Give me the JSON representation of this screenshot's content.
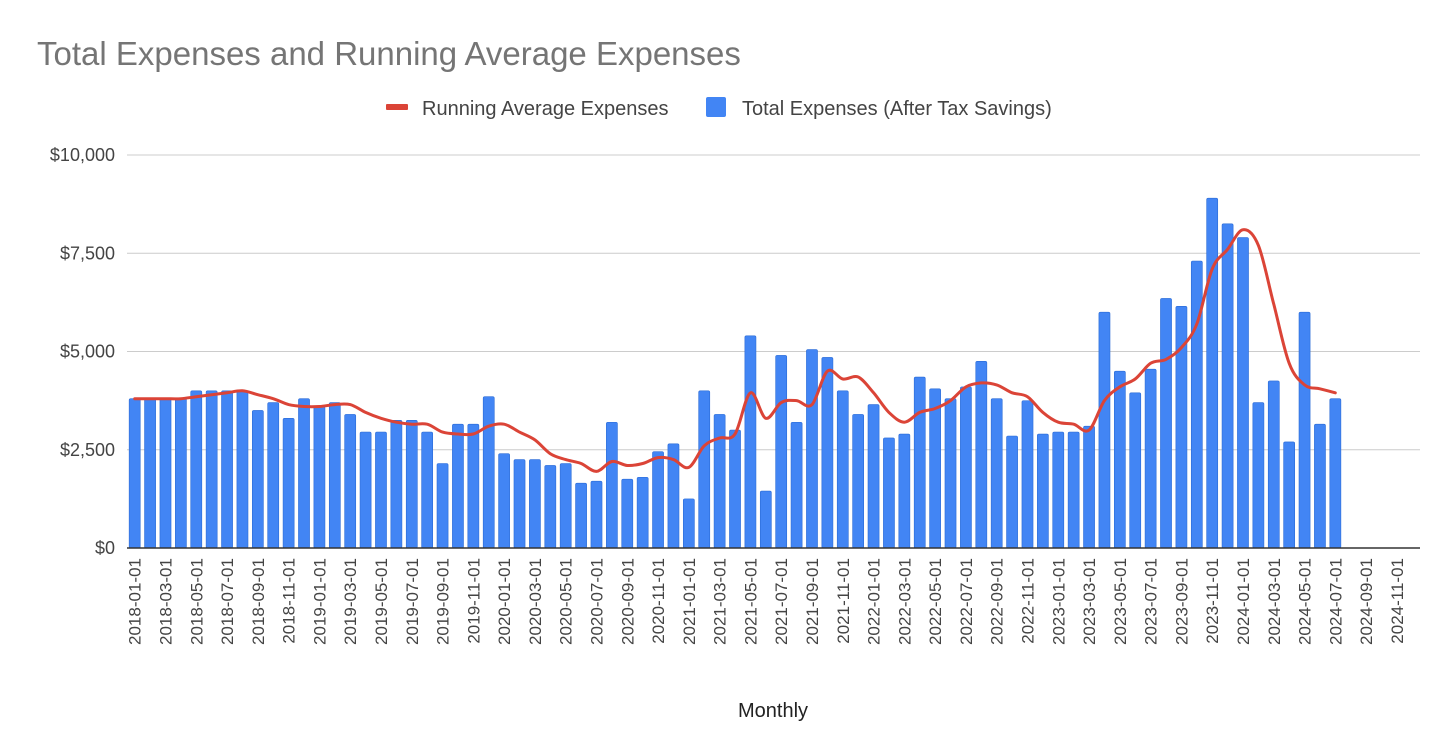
{
  "chart_data": {
    "type": "bar",
    "title": "Total Expenses and Running Average Expenses",
    "xlabel": "Monthly",
    "ylabel": "",
    "ylim": [
      0,
      10000
    ],
    "y_ticks": [
      "$0",
      "$2,500",
      "$5,000",
      "$7,500",
      "$10,000"
    ],
    "grid": true,
    "legend_position": "top",
    "categories": [
      "2018-01-01",
      "2018-02-01",
      "2018-03-01",
      "2018-04-01",
      "2018-05-01",
      "2018-06-01",
      "2018-07-01",
      "2018-08-01",
      "2018-09-01",
      "2018-10-01",
      "2018-11-01",
      "2018-12-01",
      "2019-01-01",
      "2019-02-01",
      "2019-03-01",
      "2019-04-01",
      "2019-05-01",
      "2019-06-01",
      "2019-07-01",
      "2019-08-01",
      "2019-09-01",
      "2019-10-01",
      "2019-11-01",
      "2019-12-01",
      "2020-01-01",
      "2020-02-01",
      "2020-03-01",
      "2020-04-01",
      "2020-05-01",
      "2020-06-01",
      "2020-07-01",
      "2020-08-01",
      "2020-09-01",
      "2020-10-01",
      "2020-11-01",
      "2020-12-01",
      "2021-01-01",
      "2021-02-01",
      "2021-03-01",
      "2021-04-01",
      "2021-05-01",
      "2021-06-01",
      "2021-07-01",
      "2021-08-01",
      "2021-09-01",
      "2021-10-01",
      "2021-11-01",
      "2021-12-01",
      "2022-01-01",
      "2022-02-01",
      "2022-03-01",
      "2022-04-01",
      "2022-05-01",
      "2022-06-01",
      "2022-07-01",
      "2022-08-01",
      "2022-09-01",
      "2022-10-01",
      "2022-11-01",
      "2022-12-01",
      "2023-01-01",
      "2023-02-01",
      "2023-03-01",
      "2023-04-01",
      "2023-05-01",
      "2023-06-01",
      "2023-07-01",
      "2023-08-01",
      "2023-09-01",
      "2023-10-01",
      "2023-11-01",
      "2023-12-01",
      "2024-01-01",
      "2024-02-01",
      "2024-03-01",
      "2024-04-01",
      "2024-05-01",
      "2024-06-01",
      "2024-07-01",
      "2024-08-01",
      "2024-09-01",
      "2024-10-01",
      "2024-11-01",
      "2024-12-01"
    ],
    "x_tick_labels": [
      "2018-01-01",
      "2018-03-01",
      "2018-05-01",
      "2018-07-01",
      "2018-09-01",
      "2018-11-01",
      "2019-01-01",
      "2019-03-01",
      "2019-05-01",
      "2019-07-01",
      "2019-09-01",
      "2019-11-01",
      "2020-01-01",
      "2020-03-01",
      "2020-05-01",
      "2020-07-01",
      "2020-09-01",
      "2020-11-01",
      "2021-01-01",
      "2021-03-01",
      "2021-05-01",
      "2021-07-01",
      "2021-09-01",
      "2021-11-01",
      "2022-01-01",
      "2022-03-01",
      "2022-05-01",
      "2022-07-01",
      "2022-09-01",
      "2022-11-01",
      "2023-01-01",
      "2023-03-01",
      "2023-05-01",
      "2023-07-01",
      "2023-09-01",
      "2023-11-01",
      "2024-01-01",
      "2024-03-01",
      "2024-05-01",
      "2024-07-01",
      "2024-09-01",
      "2024-11-01"
    ],
    "series": [
      {
        "name": "Total Expenses (After Tax Savings)",
        "type": "bar",
        "color": "#4285f4",
        "values": [
          3800,
          3800,
          3800,
          3800,
          4000,
          4000,
          4000,
          4000,
          3500,
          3700,
          3300,
          3800,
          3600,
          3700,
          3400,
          2950,
          2950,
          3250,
          3250,
          2950,
          2150,
          3150,
          3150,
          3850,
          2400,
          2250,
          2250,
          2100,
          2150,
          1650,
          1700,
          3200,
          1750,
          1800,
          2450,
          2650,
          1250,
          4000,
          3400,
          3000,
          5400,
          1450,
          4900,
          3200,
          5050,
          4850,
          4000,
          3400,
          3650,
          2800,
          2900,
          4350,
          4050,
          3800,
          4100,
          4750,
          3800,
          2850,
          3750,
          2900,
          2950,
          2950,
          3100,
          6000,
          4500,
          3950,
          4550,
          6350,
          6150,
          7300,
          8900,
          8250,
          7900,
          3700,
          4250,
          2700,
          6000,
          3150,
          3800,
          null,
          null,
          null,
          null,
          null
        ]
      },
      {
        "name": "Running Average Expenses",
        "type": "line",
        "color": "#db4437",
        "values": [
          3800,
          3800,
          3800,
          3800,
          3850,
          3900,
          3950,
          4000,
          3900,
          3800,
          3650,
          3600,
          3600,
          3650,
          3650,
          3450,
          3300,
          3200,
          3150,
          3150,
          2950,
          2900,
          2900,
          3100,
          3150,
          2950,
          2750,
          2400,
          2250,
          2150,
          1950,
          2200,
          2100,
          2150,
          2300,
          2250,
          2050,
          2600,
          2800,
          2900,
          3950,
          3300,
          3700,
          3750,
          3650,
          4500,
          4300,
          4350,
          3950,
          3450,
          3200,
          3450,
          3550,
          3750,
          4100,
          4200,
          4150,
          3950,
          3850,
          3450,
          3200,
          3150,
          3000,
          3750,
          4100,
          4300,
          4700,
          4800,
          5100,
          5700,
          7100,
          7600,
          8100,
          7700,
          6200,
          4700,
          4150,
          4050,
          3950,
          null,
          null,
          null,
          null,
          null
        ]
      }
    ]
  }
}
